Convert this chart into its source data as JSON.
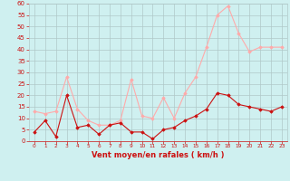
{
  "hours": [
    0,
    1,
    2,
    3,
    4,
    5,
    6,
    7,
    8,
    9,
    10,
    11,
    12,
    13,
    14,
    15,
    16,
    17,
    18,
    19,
    20,
    21,
    22,
    23
  ],
  "wind_avg": [
    4,
    9,
    2,
    20,
    6,
    7,
    3,
    7,
    8,
    4,
    4,
    1,
    5,
    6,
    9,
    11,
    14,
    21,
    20,
    16,
    15,
    14,
    13,
    15
  ],
  "wind_gust": [
    13,
    12,
    13,
    28,
    14,
    9,
    7,
    7,
    9,
    27,
    11,
    10,
    19,
    10,
    21,
    28,
    41,
    55,
    59,
    47,
    39,
    41,
    41,
    41
  ],
  "bg_color": "#cff0f0",
  "grid_color": "#b0c8c8",
  "line_avg_color": "#cc1111",
  "line_gust_color": "#ffaaaa",
  "xlabel": "Vent moyen/en rafales ( km/h )",
  "xlabel_color": "#cc1111",
  "tick_color": "#cc1111",
  "ymin": 0,
  "ymax": 60,
  "yticks": [
    0,
    5,
    10,
    15,
    20,
    25,
    30,
    35,
    40,
    45,
    50,
    55,
    60
  ],
  "marker_avg": "D",
  "marker_gust": "D",
  "linewidth": 0.8,
  "markersize": 1.8
}
